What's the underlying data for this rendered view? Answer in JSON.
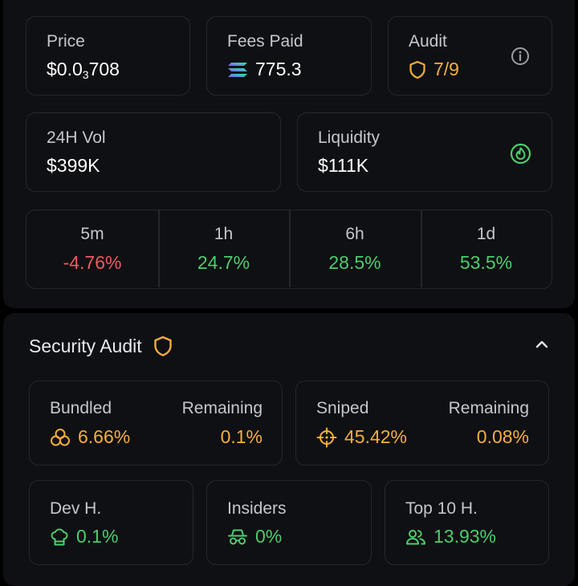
{
  "stats": {
    "price": {
      "label": "Price",
      "prefix": "$0.0",
      "sub": "3",
      "suffix": "708"
    },
    "fees": {
      "label": "Fees Paid",
      "value": "775.3",
      "icon": "solana-icon"
    },
    "audit": {
      "label": "Audit",
      "value": "7/9",
      "icon": "shield-icon",
      "info_icon": "info-icon"
    },
    "volume": {
      "label": "24H Vol",
      "value": "$399K"
    },
    "liquidity": {
      "label": "Liquidity",
      "value": "$111K",
      "icon": "flame-icon"
    }
  },
  "timeframes": [
    {
      "label": "5m",
      "value": "-4.76%"
    },
    {
      "label": "1h",
      "value": "24.7%"
    },
    {
      "label": "6h",
      "value": "28.5%"
    },
    {
      "label": "1d",
      "value": "53.5%"
    }
  ],
  "security_audit": {
    "title": "Security Audit",
    "bundled": {
      "label": "Bundled",
      "value": "6.66%",
      "remaining_label": "Remaining",
      "remaining_value": "0.1%"
    },
    "sniped": {
      "label": "Sniped",
      "value": "45.42%",
      "remaining_label": "Remaining",
      "remaining_value": "0.08%"
    },
    "dev": {
      "label": "Dev H.",
      "value": "0.1%"
    },
    "insiders": {
      "label": "Insiders",
      "value": "0%"
    },
    "top10": {
      "label": "Top 10 H.",
      "value": "13.93%"
    }
  },
  "colors": {
    "orange": "#f6ae3c",
    "green": "#4ccd6d",
    "red": "#ef5a62",
    "card_border": "#25272d",
    "panel_bg": "#0f1013"
  }
}
